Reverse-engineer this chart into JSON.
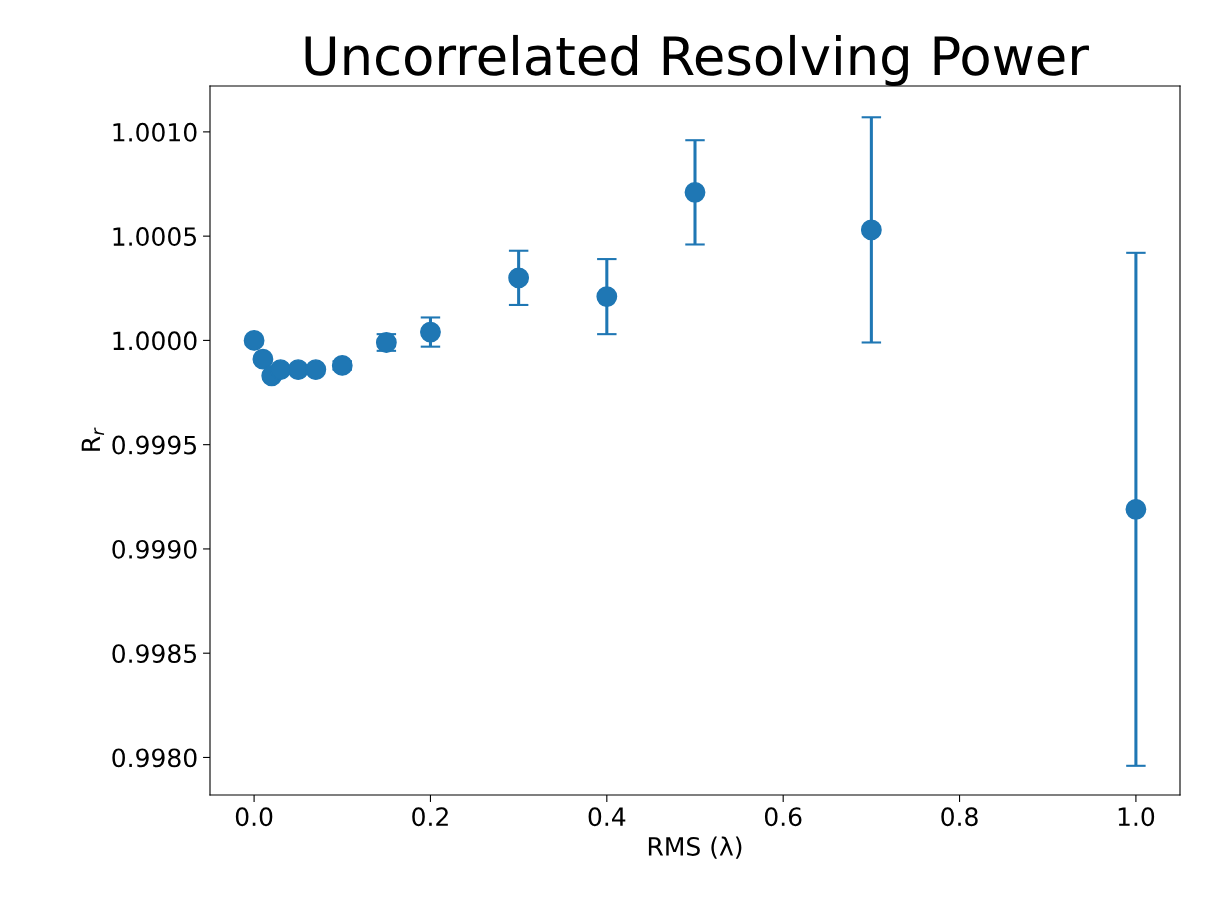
{
  "chart_data": {
    "type": "scatter",
    "title": "Uncorrelated Resolving Power",
    "xlabel": "RMS (λ)",
    "ylabel": "R$_{r}$",
    "x": [
      0,
      0.01,
      0.02,
      0.03,
      0.05,
      0.07,
      0.1,
      0.15,
      0.2,
      0.3,
      0.4,
      0.5,
      0.7,
      1.0
    ],
    "series": [
      {
        "color": "#1f77b4",
        "values": [
          1.0,
          0.99991,
          0.99983,
          0.99986,
          0.99986,
          0.99986,
          0.99988,
          0.99999,
          1.00004,
          1.0003,
          1.00021,
          1.00071,
          1.00053,
          0.99919
        ],
        "errors": [
          null,
          null,
          null,
          null,
          null,
          null,
          2e-05,
          4e-05,
          7e-05,
          0.00013,
          0.00018,
          0.00025,
          0.00054,
          0.00123
        ]
      }
    ],
    "marker": "circle",
    "xlim": [
      -0.05,
      1.05
    ],
    "ylim": [
      0.99782,
      1.00122
    ],
    "xticks": [
      {
        "value": 0,
        "label": "0.0"
      },
      {
        "value": 0.2,
        "label": "0.2"
      },
      {
        "value": 0.4,
        "label": "0.4"
      },
      {
        "value": 0.6,
        "label": "0.6"
      },
      {
        "value": 0.8,
        "label": "0.8"
      },
      {
        "value": 1.0,
        "label": "1.0"
      }
    ],
    "yticks": [
      {
        "value": 0.998,
        "label": "0.9980"
      },
      {
        "value": 0.9985,
        "label": "0.9985"
      },
      {
        "value": 0.999,
        "label": "0.9990"
      },
      {
        "value": 0.9995,
        "label": "0.9995"
      },
      {
        "value": 1.0,
        "label": "1.0000"
      },
      {
        "value": 1.0005,
        "label": "1.0005"
      },
      {
        "value": 1.001,
        "label": "1.0010"
      }
    ],
    "grid": false
  }
}
